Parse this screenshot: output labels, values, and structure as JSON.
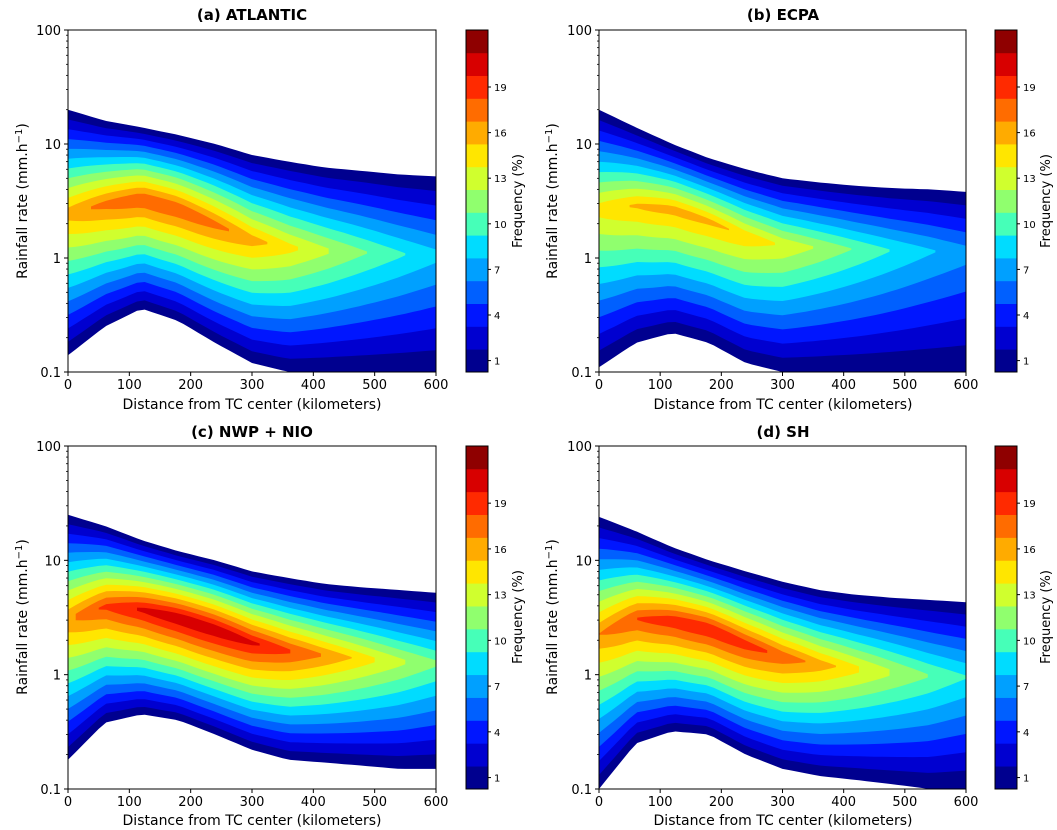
{
  "chart_data": [
    {
      "type": "heatmap",
      "title": "(a) ATLANTIC",
      "xlabel": "Distance from TC center (kilometers)",
      "ylabel": "Rainfall rate (mm.h",
      "ylabel_sup": "−1",
      "ylabel_end": ")",
      "xlim": [
        0,
        600
      ],
      "ylim": [
        0.1,
        100
      ],
      "yscale": "log",
      "x_ticks": [
        "0",
        "100",
        "200",
        "300",
        "400",
        "500",
        "600"
      ],
      "y_ticks": [
        "0.1",
        "1",
        "10",
        "100"
      ],
      "colorbar_label": "Frequency (%)",
      "colorbar_ticks": [
        "1",
        "4",
        "7",
        "10",
        "13",
        "16",
        "19"
      ],
      "x": [
        0,
        60,
        120,
        180,
        240,
        300,
        360,
        420,
        480,
        540,
        600
      ],
      "outer_upper": [
        20,
        16,
        14,
        12,
        10,
        8,
        7,
        6.2,
        5.8,
        5.4,
        5.2
      ],
      "outer_lower": [
        0.14,
        0.25,
        0.36,
        0.28,
        0.18,
        0.12,
        0.1,
        0.1,
        0.1,
        0.1,
        0.1
      ],
      "peak_x": 150,
      "peak_y": 3.0,
      "peak_value": 12
    },
    {
      "type": "heatmap",
      "title": "(b) ECPA",
      "xlabel": "Distance from TC center (kilometers)",
      "ylabel": "Rainfall rate (mm.h",
      "ylabel_sup": "−1",
      "ylabel_end": ")",
      "xlim": [
        0,
        600
      ],
      "ylim": [
        0.1,
        100
      ],
      "yscale": "log",
      "x_ticks": [
        "0",
        "100",
        "200",
        "300",
        "400",
        "500",
        "600"
      ],
      "y_ticks": [
        "0.1",
        "1",
        "10",
        "100"
      ],
      "colorbar_label": "Frequency (%)",
      "colorbar_ticks": [
        "1",
        "4",
        "7",
        "10",
        "13",
        "16",
        "19"
      ],
      "x": [
        0,
        60,
        120,
        180,
        240,
        300,
        360,
        420,
        480,
        540,
        600
      ],
      "outer_upper": [
        20,
        14,
        10,
        7.5,
        6,
        5,
        4.6,
        4.3,
        4.1,
        4.0,
        3.8
      ],
      "outer_lower": [
        0.11,
        0.18,
        0.22,
        0.18,
        0.12,
        0.1,
        0.1,
        0.1,
        0.1,
        0.1,
        0.1
      ],
      "peak_x": 130,
      "peak_y": 2.6,
      "peak_value": 10.5
    },
    {
      "type": "heatmap",
      "title": "(c) NWP + NIO",
      "xlabel": "Distance from TC center (kilometers)",
      "ylabel": "Rainfall rate (mm.h",
      "ylabel_sup": "−1",
      "ylabel_end": ")",
      "xlim": [
        0,
        600
      ],
      "ylim": [
        0.1,
        100
      ],
      "yscale": "log",
      "x_ticks": [
        "0",
        "100",
        "200",
        "300",
        "400",
        "500",
        "600"
      ],
      "y_ticks": [
        "0.1",
        "1",
        "10",
        "100"
      ],
      "colorbar_label": "Frequency (%)",
      "colorbar_ticks": [
        "1",
        "4",
        "7",
        "10",
        "13",
        "16",
        "19"
      ],
      "x": [
        0,
        60,
        120,
        180,
        240,
        300,
        360,
        420,
        480,
        540,
        600
      ],
      "outer_upper": [
        25,
        20,
        15,
        12,
        10,
        8,
        7,
        6.2,
        5.8,
        5.5,
        5.2
      ],
      "outer_lower": [
        0.18,
        0.38,
        0.45,
        0.4,
        0.3,
        0.22,
        0.18,
        0.17,
        0.16,
        0.15,
        0.15
      ],
      "peak_x": 210,
      "peak_y": 2.8,
      "peak_value": 14
    },
    {
      "type": "heatmap",
      "title": "(d) SH",
      "xlabel": "Distance from TC center (kilometers)",
      "ylabel": "Rainfall rate (mm.h",
      "ylabel_sup": "−1",
      "ylabel_end": ")",
      "xlim": [
        0,
        600
      ],
      "ylim": [
        0.1,
        100
      ],
      "yscale": "log",
      "x_ticks": [
        "0",
        "100",
        "200",
        "300",
        "400",
        "500",
        "600"
      ],
      "y_ticks": [
        "0.1",
        "1",
        "10",
        "100"
      ],
      "colorbar_label": "Frequency (%)",
      "colorbar_ticks": [
        "1",
        "4",
        "7",
        "10",
        "13",
        "16",
        "19"
      ],
      "x": [
        0,
        60,
        120,
        180,
        240,
        300,
        360,
        420,
        480,
        540,
        600
      ],
      "outer_upper": [
        24,
        18,
        13,
        10,
        8,
        6.5,
        5.5,
        5,
        4.7,
        4.5,
        4.3
      ],
      "outer_lower": [
        0.1,
        0.25,
        0.32,
        0.3,
        0.2,
        0.15,
        0.13,
        0.12,
        0.11,
        0.1,
        0.1
      ],
      "peak_x": 170,
      "peak_y": 2.6,
      "peak_value": 13
    }
  ],
  "colors": {
    "levels": [
      "#00008f",
      "#0000d0",
      "#0016ff",
      "#0060ff",
      "#00a0ff",
      "#00dcff",
      "#46ffb8",
      "#90ff6e",
      "#d0ff2e",
      "#ffe600",
      "#ffab00",
      "#ff6c00",
      "#ff2a00",
      "#d80000",
      "#8f0000"
    ]
  }
}
